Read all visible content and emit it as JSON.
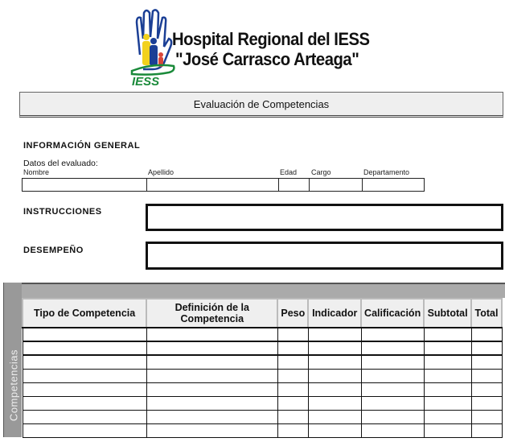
{
  "logo": {
    "line1": "Hospital Regional del IESS",
    "line2": "\"José Carrasco Arteaga\"",
    "badge": "IESS",
    "colors": {
      "blue": "#1b3f95",
      "yellow": "#f2d11c",
      "green": "#1a8a3a",
      "red": "#d9473a"
    }
  },
  "title": "Evaluación de Competencias",
  "general": {
    "heading": "INFORMACIÓN GENERAL",
    "subheading": "Datos del evaluado:",
    "fields": [
      "Nombre",
      "Apellido",
      "Edad",
      "Cargo",
      "Departamento"
    ]
  },
  "instructions_label": "INSTRUCCIONES",
  "performance_label": "DESEMPEÑO",
  "table": {
    "side_label": "Competencias",
    "columns": [
      "Tipo de Competencia",
      "Definición de la Competencia",
      "Peso",
      "Indicador",
      "Calificación",
      "Subtotal",
      "Total"
    ],
    "row_count": 8
  }
}
